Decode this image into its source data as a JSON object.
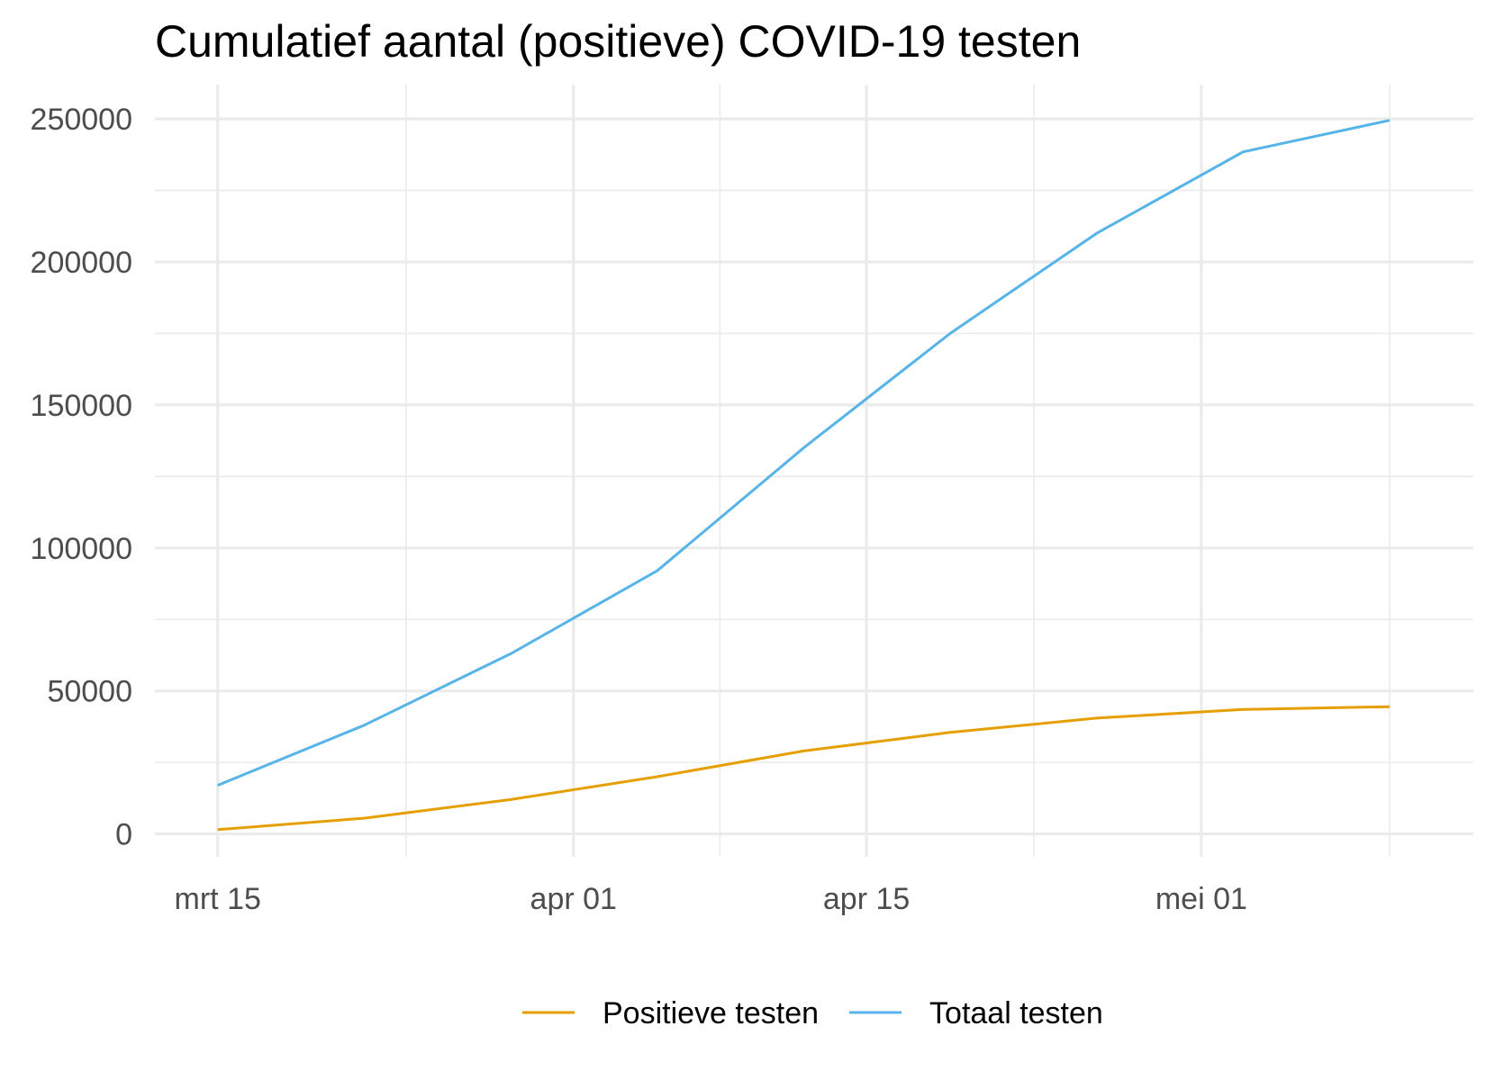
{
  "chart_data": {
    "type": "line",
    "title": "Cumulatief aantal (positieve) COVID-19 testen",
    "xlabel": "",
    "ylabel": "",
    "x_range": [
      "2020-03-12",
      "2020-05-14"
    ],
    "ylim": [
      -8000,
      262000
    ],
    "y_ticks": [
      0,
      50000,
      100000,
      150000,
      200000,
      250000
    ],
    "y_tick_labels": [
      "0",
      "50000",
      "100000",
      "150000",
      "200000",
      "250000"
    ],
    "y_minor_ticks": [
      25000,
      75000,
      125000,
      175000,
      225000
    ],
    "x_ticks": [
      "2020-03-15",
      "2020-04-01",
      "2020-04-15",
      "2020-05-01"
    ],
    "x_tick_labels": [
      "mrt 15",
      "apr 01",
      "apr 15",
      "mei 01"
    ],
    "x_minor_ticks": [
      "2020-03-24",
      "2020-04-08",
      "2020-04-23",
      "2020-05-10"
    ],
    "grid": true,
    "legend_position": "bottom",
    "series": [
      {
        "name": "Positieve testen",
        "color": "#E69F00",
        "points": [
          {
            "x": "2020-03-15",
            "y": 1500
          },
          {
            "x": "2020-03-22",
            "y": 5500
          },
          {
            "x": "2020-03-29",
            "y": 12000
          },
          {
            "x": "2020-04-05",
            "y": 20000
          },
          {
            "x": "2020-04-12",
            "y": 29000
          },
          {
            "x": "2020-04-19",
            "y": 35500
          },
          {
            "x": "2020-04-26",
            "y": 40500
          },
          {
            "x": "2020-05-03",
            "y": 43500
          },
          {
            "x": "2020-05-10",
            "y": 44500
          }
        ]
      },
      {
        "name": "Totaal testen",
        "color": "#56B4E9",
        "points": [
          {
            "x": "2020-03-15",
            "y": 17000
          },
          {
            "x": "2020-03-22",
            "y": 38000
          },
          {
            "x": "2020-03-29",
            "y": 63000
          },
          {
            "x": "2020-04-05",
            "y": 92000
          },
          {
            "x": "2020-04-12",
            "y": 135000
          },
          {
            "x": "2020-04-19",
            "y": 175000
          },
          {
            "x": "2020-04-26",
            "y": 210000
          },
          {
            "x": "2020-05-03",
            "y": 238500
          },
          {
            "x": "2020-05-10",
            "y": 249500
          }
        ]
      }
    ]
  }
}
